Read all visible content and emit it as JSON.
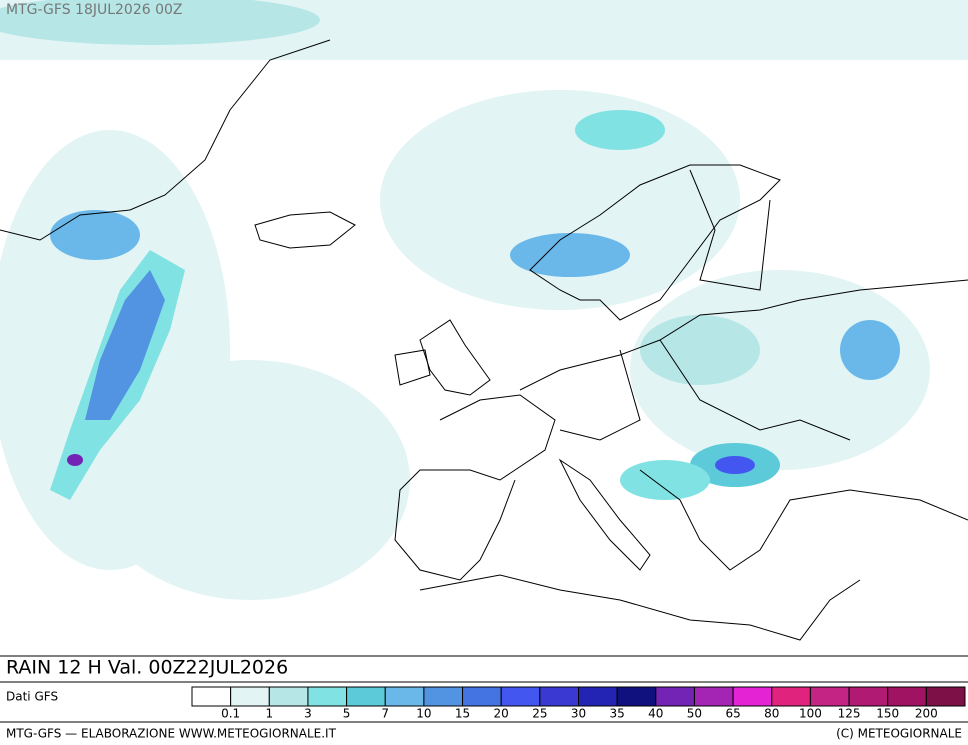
{
  "header": {
    "run": "MTG-GFS 18JUL2026 00Z"
  },
  "map": {
    "title": "RAIN 12 H Val. 00Z22JUL2026",
    "source": "Dati GFS"
  },
  "legend": {
    "labels": [
      0.1,
      1,
      3,
      5,
      7,
      10,
      15,
      20,
      25,
      30,
      35,
      40,
      50,
      65,
      80,
      100,
      125,
      150,
      200
    ],
    "colors": [
      "#ffffff",
      "#e2f4f4",
      "#b6e6e6",
      "#80e2e2",
      "#5ccad8",
      "#6ab8ea",
      "#5294e2",
      "#4474e2",
      "#4456f0",
      "#3a3ad2",
      "#2424b4",
      "#10107e",
      "#7424b4",
      "#a424b4",
      "#e424d4",
      "#e0247e",
      "#c42484",
      "#b01a72",
      "#a01262",
      "#7e1048"
    ]
  },
  "footer": {
    "left": "MTG-GFS — ELABORAZIONE WWW.METEOGIORNALE.IT",
    "right": "(C) METEOGIORNALE"
  }
}
